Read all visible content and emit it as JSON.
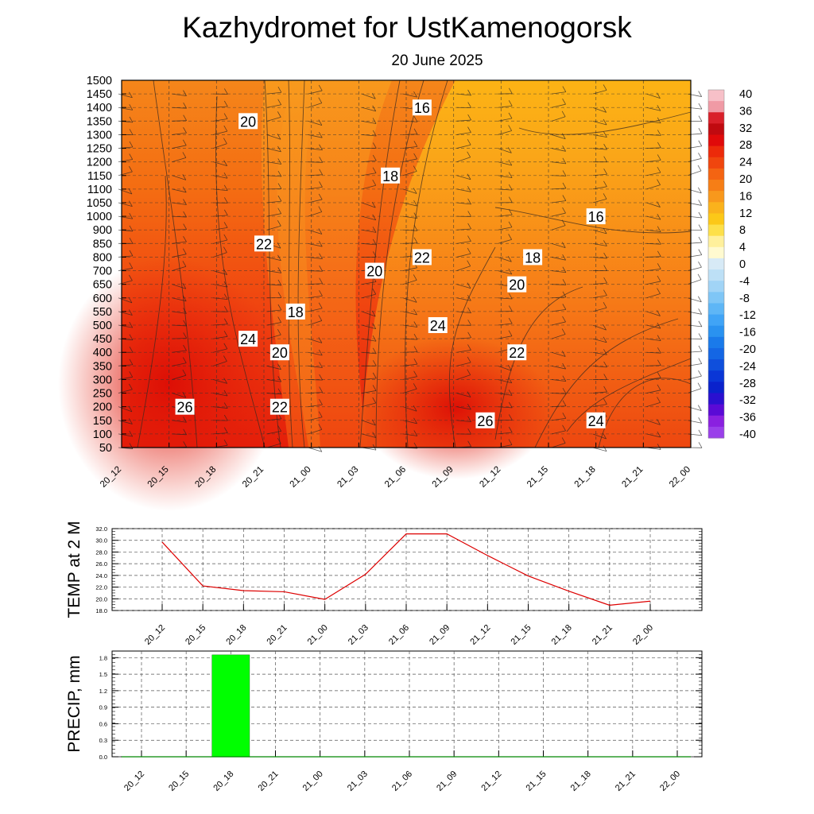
{
  "title": "Kazhydromet  for UstKamenogorsk",
  "subtitle": "20 June 2025",
  "colors": {
    "precip_bar": "#00ff00",
    "temp_line": "#dd0000"
  },
  "chart_data": [
    {
      "type": "heatmap",
      "name": "temperature-cross-section",
      "x_ticks": [
        "20_12",
        "20_15",
        "20_18",
        "20_21",
        "21_00",
        "21_03",
        "21_06",
        "21_09",
        "21_12",
        "21_15",
        "21_18",
        "21_21",
        "22_00"
      ],
      "y_ticks": [
        "1500",
        "1450",
        "1400",
        "1350",
        "1300",
        "1250",
        "1200",
        "1150",
        "1100",
        "1050",
        "1000",
        "900",
        "850",
        "800",
        "700",
        "650",
        "600",
        "550",
        "500",
        "450",
        "400",
        "350",
        "300",
        "250",
        "200",
        "150",
        "100",
        "50"
      ],
      "colorbar_ticks": [
        "40",
        "36",
        "32",
        "28",
        "24",
        "20",
        "16",
        "12",
        "8",
        "4",
        "0",
        "-4",
        "-8",
        "-12",
        "-16",
        "-20",
        "-24",
        "-28",
        "-32",
        "-36",
        "-40"
      ],
      "contour_labels": [
        {
          "text": "16",
          "x": "21_07",
          "level": "1400"
        },
        {
          "text": "20",
          "x": "20_20",
          "level": "1350"
        },
        {
          "text": "18",
          "x": "21_05",
          "level": "1150"
        },
        {
          "text": "16",
          "x": "21_18",
          "level": "1000"
        },
        {
          "text": "22",
          "x": "20_21",
          "level": "850"
        },
        {
          "text": "22",
          "x": "21_07",
          "level": "800"
        },
        {
          "text": "18",
          "x": "21_14",
          "level": "800"
        },
        {
          "text": "20",
          "x": "21_04",
          "level": "700"
        },
        {
          "text": "20",
          "x": "21_13",
          "level": "650"
        },
        {
          "text": "18",
          "x": "20_23",
          "level": "550"
        },
        {
          "text": "24",
          "x": "21_08",
          "level": "500"
        },
        {
          "text": "24",
          "x": "20_20",
          "level": "450"
        },
        {
          "text": "20",
          "x": "20_22",
          "level": "400"
        },
        {
          "text": "22",
          "x": "21_13",
          "level": "400"
        },
        {
          "text": "26",
          "x": "20_16",
          "level": "200"
        },
        {
          "text": "22",
          "x": "20_22",
          "level": "200"
        },
        {
          "text": "26",
          "x": "21_11",
          "level": "150"
        },
        {
          "text": "24",
          "x": "21_18",
          "level": "150"
        }
      ]
    },
    {
      "type": "line",
      "name": "temperature-2m",
      "ylabel": "TEMP at 2 M",
      "ylim": [
        18,
        32
      ],
      "y_ticks": [
        "32.0",
        "30.0",
        "28.0",
        "26.0",
        "24.0",
        "22.0",
        "20.0",
        "18.0"
      ],
      "categories": [
        "20_12",
        "20_15",
        "20_18",
        "20_21",
        "21_00",
        "21_03",
        "21_06",
        "21_09",
        "21_12",
        "21_15",
        "21_18",
        "21_21",
        "22_00"
      ],
      "values": [
        29.7,
        22.2,
        21.4,
        21.2,
        19.9,
        24.2,
        31.1,
        31.1,
        27.4,
        23.9,
        21.3,
        18.9,
        19.6
      ]
    },
    {
      "type": "bar",
      "name": "precipitation",
      "ylabel": "PRECIP, mm",
      "ylim": [
        0,
        1.92
      ],
      "y_ticks": [
        "1.8",
        "1.5",
        "1.2",
        "0.9",
        "0.6",
        "0.3",
        "0.0"
      ],
      "categories": [
        "20_12",
        "20_15",
        "20_18",
        "20_21",
        "21_00",
        "21_03",
        "21_06",
        "21_09",
        "21_12",
        "21_15",
        "21_18",
        "21_21",
        "22_00"
      ],
      "values": [
        0,
        0,
        1.85,
        0,
        0,
        0,
        0,
        0,
        0,
        0,
        0,
        0,
        0
      ]
    }
  ]
}
